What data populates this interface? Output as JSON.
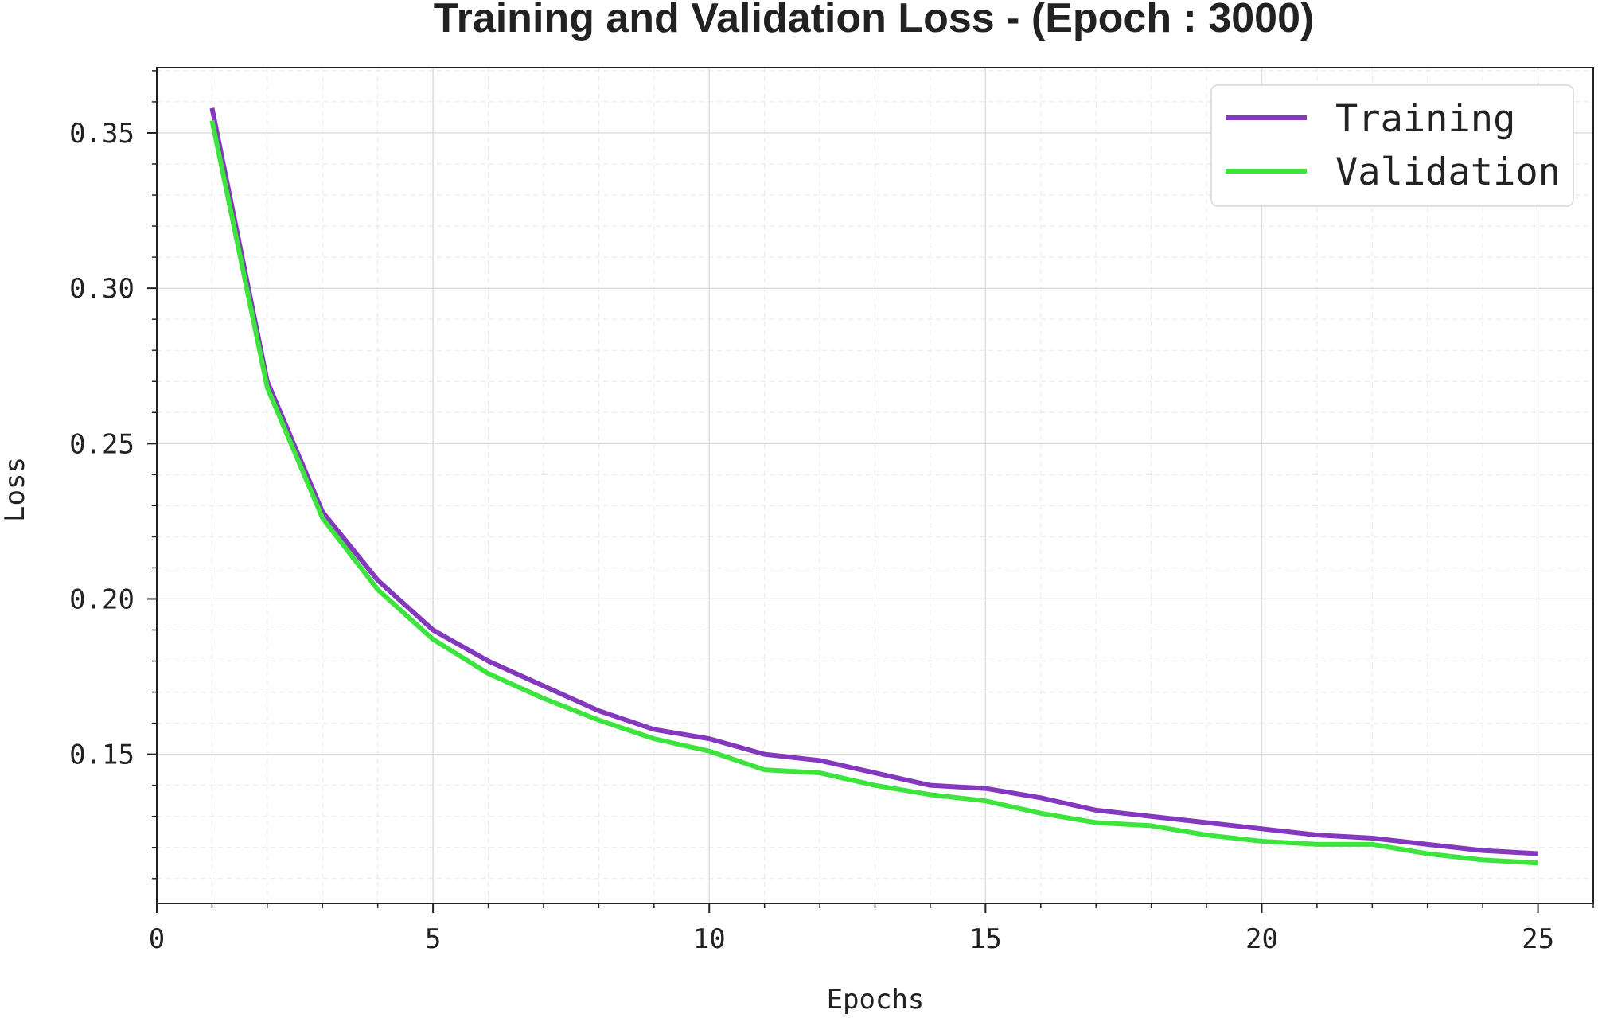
{
  "chart_data": {
    "type": "line",
    "title": "Training and Validation Loss - (Epoch : 3000)",
    "xlabel": "Epochs",
    "ylabel": "Loss",
    "xlim": [
      0,
      26
    ],
    "ylim": [
      0.102,
      0.371
    ],
    "xticks": [
      0,
      5,
      10,
      15,
      20,
      25
    ],
    "xtick_labels": [
      "0",
      "5",
      "10",
      "15",
      "20",
      "25"
    ],
    "yticks": [
      0.15,
      0.2,
      0.25,
      0.3,
      0.35
    ],
    "ytick_labels": [
      "0.15",
      "0.20",
      "0.25",
      "0.30",
      "0.35"
    ],
    "grid": true,
    "legend_position": "top-right",
    "x": [
      1,
      2,
      3,
      4,
      5,
      6,
      7,
      8,
      9,
      10,
      11,
      12,
      13,
      14,
      15,
      16,
      17,
      18,
      19,
      20,
      21,
      22,
      23,
      24,
      25
    ],
    "series": [
      {
        "name": "Training",
        "color": "#8338bd",
        "values": [
          0.358,
          0.27,
          0.228,
          0.206,
          0.19,
          0.18,
          0.172,
          0.164,
          0.158,
          0.155,
          0.15,
          0.148,
          0.144,
          0.14,
          0.139,
          0.136,
          0.132,
          0.13,
          0.128,
          0.126,
          0.124,
          0.123,
          0.121,
          0.119,
          0.118
        ]
      },
      {
        "name": "Validation",
        "color": "#3ee43e",
        "values": [
          0.354,
          0.268,
          0.226,
          0.203,
          0.187,
          0.176,
          0.168,
          0.161,
          0.155,
          0.151,
          0.145,
          0.144,
          0.14,
          0.137,
          0.135,
          0.131,
          0.128,
          0.127,
          0.124,
          0.122,
          0.121,
          0.121,
          0.118,
          0.116,
          0.115
        ]
      }
    ]
  }
}
